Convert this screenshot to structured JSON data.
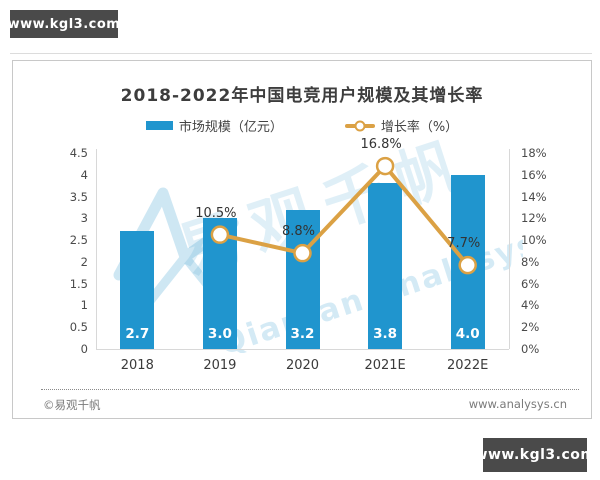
{
  "watermark_top": "www.kgl3.com",
  "watermark_bottom": "www.kgl3.com",
  "chart": {
    "title": "2018-2022年中国电竞用户规模及其增长率",
    "legend": [
      {
        "label": "市场规模（亿元）"
      },
      {
        "label": "增长率（%）"
      }
    ],
    "footer_left": "©易观千帆",
    "footer_right": "www.analysys.cn",
    "background_watermark": {
      "cn": "易观千帆",
      "en": "Qianfan.analysys.cn"
    }
  },
  "chart_data": {
    "type": "bar",
    "subtype": "bar-line-combo",
    "title": "2018-2022年中国电竞用户规模及其增长率",
    "categories": [
      "2018",
      "2019",
      "2020",
      "2021E",
      "2022E"
    ],
    "series": [
      {
        "name": "市场规模（亿元）",
        "type": "bar",
        "axis": "left",
        "values": [
          2.7,
          3.0,
          3.2,
          3.8,
          4.0
        ],
        "labels": [
          "2.7",
          "3.0",
          "3.2",
          "3.8",
          "4.0"
        ],
        "color": "#2095ce"
      },
      {
        "name": "增长率（%）",
        "type": "line",
        "axis": "right",
        "values": [
          null,
          10.5,
          8.8,
          16.8,
          7.7
        ],
        "labels": [
          null,
          "10.5%",
          "8.8%",
          "16.8%",
          "7.7%"
        ],
        "color": "#dba144",
        "marker": "hollow-circle"
      }
    ],
    "left_axis": {
      "min": 0,
      "max": 4.5,
      "ticks": [
        "4.5",
        "4",
        "3.5",
        "3",
        "2.5",
        "2",
        "1.5",
        "1",
        "0.5",
        "0"
      ]
    },
    "right_axis": {
      "min": 0,
      "max": 18,
      "ticks": [
        "18%",
        "16%",
        "14%",
        "12%",
        "10%",
        "8%",
        "6%",
        "4%",
        "2%",
        "0%"
      ]
    },
    "grid": false,
    "legend_position": "top"
  }
}
